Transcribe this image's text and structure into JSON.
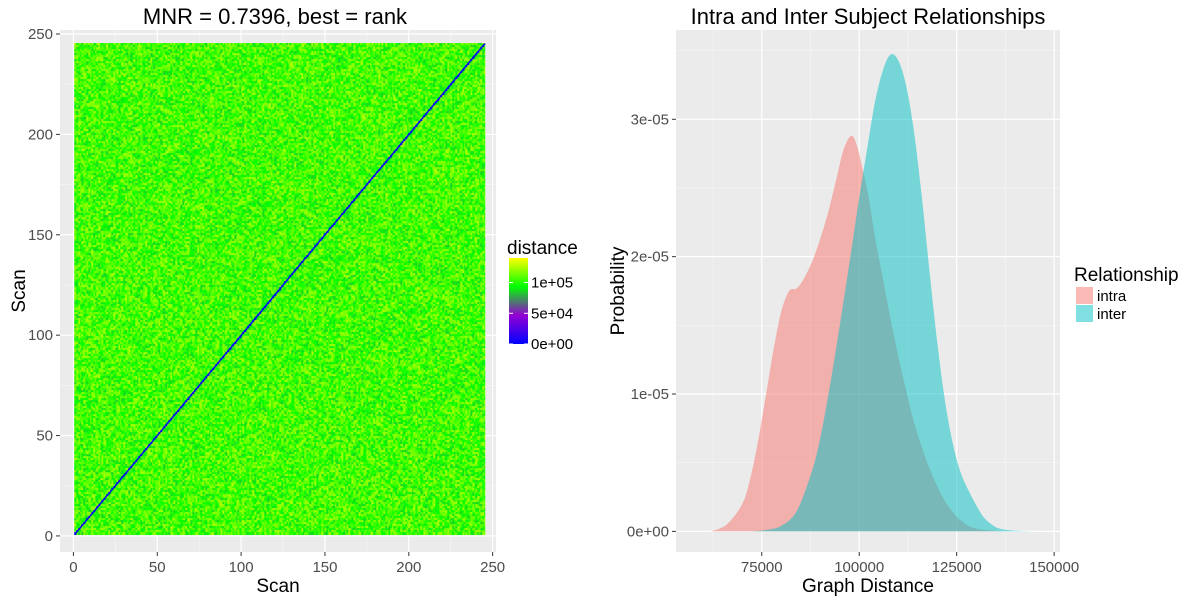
{
  "chart_data": [
    {
      "type": "heatmap",
      "title": "MNR = 0.7396, best = rank",
      "xlabel": "Scan",
      "ylabel": "Scan",
      "xlim": [
        -8,
        252
      ],
      "ylim": [
        -8,
        252
      ],
      "n_scans": 245,
      "x_ticks": [
        0,
        50,
        100,
        150,
        200,
        250
      ],
      "y_ticks": [
        0,
        50,
        100,
        150,
        200,
        250
      ],
      "fill_scale": {
        "name": "distance",
        "colors": [
          "#0000ff",
          "#9400d3",
          "#00ff00",
          "#ffff00"
        ],
        "range": [
          0,
          140000
        ],
        "breaks": [
          0,
          50000,
          100000
        ],
        "break_labels": [
          "0e+00",
          "5e+04",
          "1e+05"
        ]
      },
      "diagonal_value": 0,
      "off_diagonal_typical": [
        85000,
        125000
      ],
      "grid": true
    },
    {
      "type": "area",
      "title": "Intra and Inter Subject Relationships",
      "xlabel": "Graph Distance",
      "ylabel": "Probability",
      "xlim": [
        53000,
        151500
      ],
      "ylim": [
        -1.5e-06,
        3.65e-05
      ],
      "x_ticks": [
        75000,
        100000,
        125000,
        150000
      ],
      "x_tick_labels": [
        "75000",
        "100000",
        "125000",
        "150000"
      ],
      "y_ticks": [
        0,
        1e-05,
        2e-05,
        3e-05
      ],
      "y_tick_labels": [
        "0e+00",
        "1e-05",
        "2e-05",
        "3e-05"
      ],
      "legend": {
        "title": "Relationship",
        "position": "right"
      },
      "grid": true,
      "series": [
        {
          "name": "intra",
          "color": "#f8766d",
          "x": [
            62000,
            66000,
            70000,
            72000,
            74000,
            76000,
            78000,
            80000,
            82000,
            84000,
            86000,
            88000,
            90000,
            92000,
            94000,
            96000,
            98000,
            99500,
            101000,
            102500,
            104000,
            106000,
            108000,
            110000,
            112000,
            114000,
            116000,
            118000,
            120000,
            122000,
            124000,
            126000,
            128000,
            130000,
            132000,
            136000,
            140000
          ],
          "values": [
            0,
            5e-07,
            2e-06,
            3.8e-06,
            6.5e-06,
            9.8e-06,
            1.32e-05,
            1.6e-05,
            1.75e-05,
            1.77e-05,
            1.85e-05,
            1.97e-05,
            2.13e-05,
            2.32e-05,
            2.55e-05,
            2.78e-05,
            2.88e-05,
            2.8e-05,
            2.62e-05,
            2.42e-05,
            2.15e-05,
            1.85e-05,
            1.55e-05,
            1.28e-05,
            1.03e-05,
            8e-06,
            6.2e-06,
            4.6e-06,
            3.3e-06,
            2.2e-06,
            1.4e-06,
            8e-07,
            4e-07,
            2e-07,
            1e-07,
            2e-08,
            0
          ]
        },
        {
          "name": "inter",
          "color": "#00bfc4",
          "x": [
            72000,
            76000,
            80000,
            84000,
            88000,
            90000,
            92000,
            94000,
            96000,
            98000,
            100000,
            102000,
            104000,
            106000,
            108000,
            110000,
            112000,
            114000,
            116000,
            118000,
            120000,
            122000,
            124000,
            126000,
            128000,
            130000,
            132000,
            134000,
            136000,
            140000,
            145000
          ],
          "values": [
            0,
            1e-07,
            4e-07,
            1.5e-06,
            4.5e-06,
            6.8e-06,
            9.8e-06,
            1.32e-05,
            1.68e-05,
            2.05e-05,
            2.43e-05,
            2.78e-05,
            3.12e-05,
            3.35e-05,
            3.47e-05,
            3.43e-05,
            3.25e-05,
            2.92e-05,
            2.45e-05,
            1.9e-05,
            1.38e-05,
            9.5e-06,
            6.4e-06,
            4.3e-06,
            3e-06,
            1.9e-06,
            1e-06,
            5e-07,
            2e-07,
            5e-08,
            0
          ]
        }
      ]
    }
  ]
}
